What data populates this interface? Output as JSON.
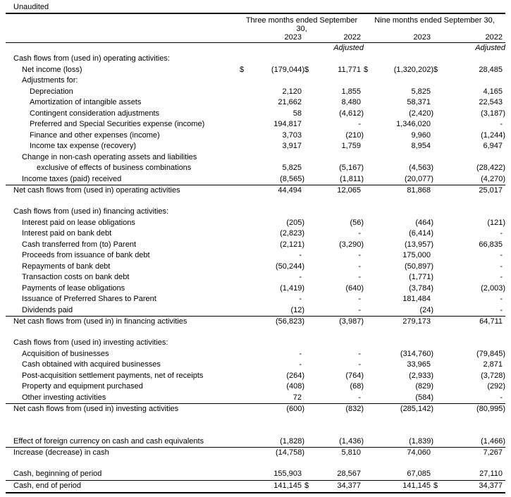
{
  "meta": {
    "unaudited_label": "Unaudited"
  },
  "header": {
    "groups": [
      {
        "label": "Three months ended September 30,"
      },
      {
        "label": "Nine months ended September 30,"
      }
    ],
    "years": [
      "2023",
      "2022",
      "2023",
      "2022"
    ],
    "adjusted_label": "Adjusted"
  },
  "rows": [
    {
      "type": "section",
      "indent": 0,
      "label": "Cash flows from (used in) operating activities:",
      "values": [
        "",
        "",
        "",
        ""
      ]
    },
    {
      "type": "item",
      "indent": 1,
      "label": "Net income (loss)",
      "values": [
        "(179,044)",
        "11,771",
        "(1,320,202)",
        "28,485"
      ],
      "dollars": [
        true,
        true,
        true,
        true
      ]
    },
    {
      "type": "label",
      "indent": 1,
      "label": "Adjustments for:",
      "values": [
        "",
        "",
        "",
        ""
      ]
    },
    {
      "type": "item",
      "indent": 2,
      "label": "Depreciation",
      "values": [
        "2,120",
        "1,855",
        "5,825",
        "4,165"
      ]
    },
    {
      "type": "item",
      "indent": 2,
      "label": "Amortization of intangible assets",
      "values": [
        "21,662",
        "8,480",
        "58,371",
        "22,543"
      ]
    },
    {
      "type": "item",
      "indent": 2,
      "label": "Contingent consideration adjustments",
      "values": [
        "58",
        "(4,612)",
        "(2,420)",
        "(3,187)"
      ]
    },
    {
      "type": "item",
      "indent": 2,
      "label": "Preferred and Special Securities expense (income)",
      "values": [
        "194,817",
        "-",
        "1,346,020",
        "-"
      ]
    },
    {
      "type": "item",
      "indent": 2,
      "label": "Finance and other expenses (income)",
      "values": [
        "3,703",
        "(210)",
        "9,960",
        "(1,244)"
      ]
    },
    {
      "type": "item",
      "indent": 2,
      "label": "Income tax expense (recovery)",
      "values": [
        "3,917",
        "1,759",
        "8,954",
        "6,947"
      ]
    },
    {
      "type": "label",
      "indent": 1,
      "label": "Change in non-cash operating assets and liabilities",
      "values": [
        "",
        "",
        "",
        ""
      ]
    },
    {
      "type": "item",
      "indent": 3,
      "label": "exclusive of effects of business combinations",
      "values": [
        "5,825",
        "(5,167)",
        "(4,563)",
        "(28,422)"
      ]
    },
    {
      "type": "item",
      "indent": 1,
      "label": "Income taxes (paid) received",
      "values": [
        "(8,565)",
        "(1,811)",
        "(20,077)",
        "(4,270)"
      ]
    },
    {
      "type": "total",
      "indent": 0,
      "label": "Net cash flows from (used in) operating activities",
      "values": [
        "44,494",
        "12,065",
        "81,868",
        "25,017"
      ],
      "rule_top": true
    },
    {
      "type": "spacer"
    },
    {
      "type": "section",
      "indent": 0,
      "label": "Cash flows from (used in) financing activities:",
      "values": [
        "",
        "",
        "",
        ""
      ]
    },
    {
      "type": "item",
      "indent": 1,
      "label": "Interest paid on lease obligations",
      "values": [
        "(205)",
        "(56)",
        "(464)",
        "(121)"
      ]
    },
    {
      "type": "item",
      "indent": 1,
      "label": "Interest paid on bank debt",
      "values": [
        "(2,823)",
        "-",
        "(6,414)",
        "-"
      ]
    },
    {
      "type": "item",
      "indent": 1,
      "label": "Cash transferred from (to) Parent",
      "values": [
        "(2,121)",
        "(3,290)",
        "(13,957)",
        "66,835"
      ]
    },
    {
      "type": "item",
      "indent": 1,
      "label": "Proceeds from issuance of bank debt",
      "values": [
        "-",
        "-",
        "175,000",
        "-"
      ]
    },
    {
      "type": "item",
      "indent": 1,
      "label": "Repayments of bank debt",
      "values": [
        "(50,244)",
        "-",
        "(50,897)",
        "-"
      ]
    },
    {
      "type": "item",
      "indent": 1,
      "label": "Transaction costs on bank debt",
      "values": [
        "-",
        "-",
        "(1,771)",
        "-"
      ]
    },
    {
      "type": "item",
      "indent": 1,
      "label": "Payments of lease obligations",
      "values": [
        "(1,419)",
        "(640)",
        "(3,784)",
        "(2,003)"
      ]
    },
    {
      "type": "item",
      "indent": 1,
      "label": "Issuance of Preferred Shares to Parent",
      "values": [
        "-",
        "-",
        "181,484",
        "-"
      ]
    },
    {
      "type": "item",
      "indent": 1,
      "label": "Dividends paid",
      "values": [
        "(12)",
        "-",
        "(24)",
        "-"
      ]
    },
    {
      "type": "total",
      "indent": 0,
      "label": "Net cash flows from (used in) in financing activities",
      "values": [
        "(56,823)",
        "(3,987)",
        "279,173",
        "64,711"
      ],
      "rule_top": true
    },
    {
      "type": "spacer"
    },
    {
      "type": "section",
      "indent": 0,
      "label": "Cash flows from (used in) investing activities:",
      "values": [
        "",
        "",
        "",
        ""
      ]
    },
    {
      "type": "item",
      "indent": 1,
      "label": "Acquisition of businesses",
      "values": [
        "-",
        "-",
        "(314,760)",
        "(79,845)"
      ]
    },
    {
      "type": "item",
      "indent": 1,
      "label": "Cash obtained with acquired businesses",
      "values": [
        "-",
        "-",
        "33,965",
        "2,871"
      ]
    },
    {
      "type": "item",
      "indent": 1,
      "label": "Post-acquisition settlement payments, net of receipts",
      "values": [
        "(264)",
        "(764)",
        "(2,933)",
        "(3,728)"
      ]
    },
    {
      "type": "item",
      "indent": 1,
      "label": "Property and equipment purchased",
      "values": [
        "(408)",
        "(68)",
        "(829)",
        "(292)"
      ]
    },
    {
      "type": "item",
      "indent": 1,
      "label": "Other investing activities",
      "values": [
        "72",
        "-",
        "(584)",
        "-"
      ]
    },
    {
      "type": "total",
      "indent": 0,
      "label": "Net cash flows from (used in) investing activities",
      "values": [
        "(600)",
        "(832)",
        "(285,142)",
        "(80,995)"
      ],
      "rule_top": true
    },
    {
      "type": "spacer"
    },
    {
      "type": "spacer"
    },
    {
      "type": "item",
      "indent": 0,
      "label": "Effect of foreign currency on cash and cash equivalents",
      "values": [
        "(1,828)",
        "(1,436)",
        "(1,839)",
        "(1,466)"
      ]
    },
    {
      "type": "total",
      "indent": 0,
      "label": "Increase (decrease) in cash",
      "values": [
        "(14,758)",
        "5,810",
        "74,060",
        "7,267"
      ],
      "rule_top": true
    },
    {
      "type": "spacer"
    },
    {
      "type": "item",
      "indent": 0,
      "label": "Cash, beginning of period",
      "values": [
        "155,903",
        "28,567",
        "67,085",
        "27,110"
      ]
    },
    {
      "type": "total",
      "indent": 0,
      "label": "Cash, end of period",
      "values": [
        "141,145",
        "34,377",
        "141,145",
        "34,377"
      ],
      "dollars": [
        false,
        true,
        false,
        true
      ],
      "rule_top": true
    }
  ]
}
